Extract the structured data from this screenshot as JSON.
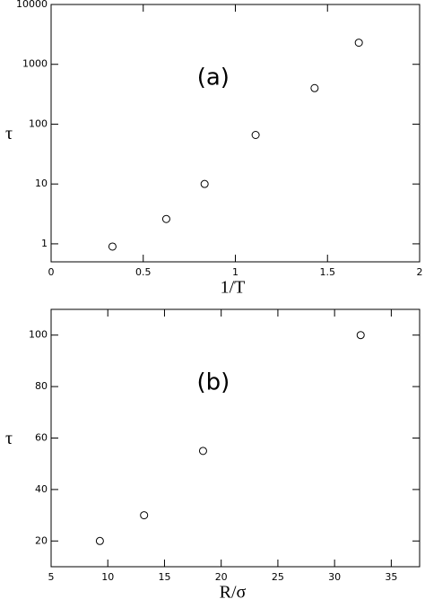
{
  "chart_data": [
    {
      "type": "scatter",
      "annotation": "(a)",
      "x_label": "1/T",
      "y_label": "τ",
      "x": [
        0.333,
        0.625,
        0.833,
        1.11,
        1.43,
        1.67
      ],
      "values": [
        0.9,
        2.6,
        10,
        66,
        400,
        2300
      ],
      "color": "#000000",
      "xlim": [
        0,
        2
      ],
      "xticks": [
        0,
        0.5,
        1,
        1.5,
        2
      ],
      "ylim": [
        0.5,
        10000
      ],
      "yticks": [
        1,
        10,
        100,
        1000,
        10000
      ],
      "y_log": true
    },
    {
      "type": "scatter",
      "annotation": "(b)",
      "x_label": "R/σ",
      "y_label": "τ",
      "x": [
        9.3,
        13.2,
        18.4,
        32.3
      ],
      "values": [
        20,
        30,
        55,
        100
      ],
      "color": "#000000",
      "xlim": [
        5,
        37.5
      ],
      "xticks": [
        5,
        10,
        15,
        20,
        25,
        30,
        35
      ],
      "ylim": [
        10,
        110
      ],
      "yticks": [
        20,
        40,
        60,
        80,
        100
      ],
      "y_log": false
    }
  ]
}
